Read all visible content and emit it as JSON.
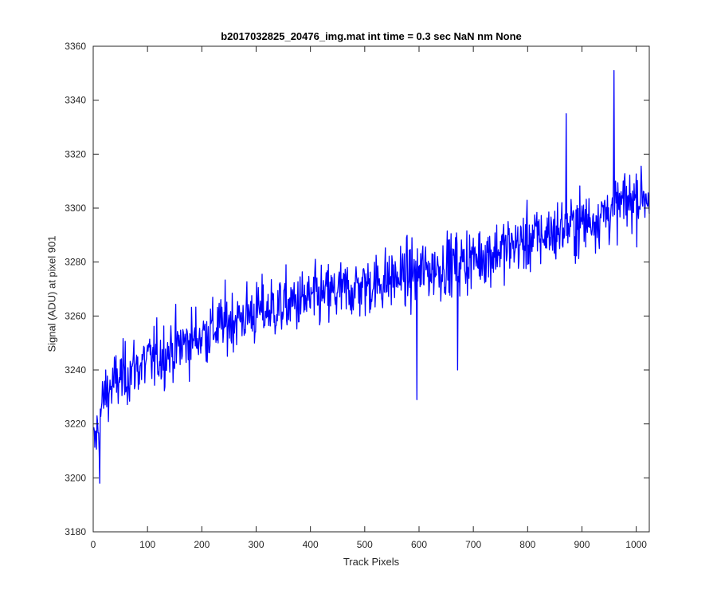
{
  "chart_data": {
    "type": "line",
    "title": "b2017032825_20476_img.mat int time = 0.3 sec  NaN nm None",
    "xlabel": "Track Pixels",
    "ylabel": "Signal (ADU) at pixel 901",
    "xlim": [
      0,
      1024
    ],
    "ylim": [
      3180,
      3360
    ],
    "xticks": [
      0,
      100,
      200,
      300,
      400,
      500,
      600,
      700,
      800,
      900,
      1000
    ],
    "yticks": [
      3180,
      3200,
      3220,
      3240,
      3260,
      3280,
      3300,
      3320,
      3340,
      3360
    ],
    "grid": false,
    "legend": "none",
    "series_color": "#0000ff",
    "axes_color": "#262626",
    "series": [
      {
        "x": [
          0,
          5,
          10,
          15,
          20,
          25,
          30,
          35,
          40,
          45,
          50,
          60,
          70,
          80,
          90,
          100,
          110,
          120,
          130,
          140,
          150,
          160,
          170,
          180,
          190,
          200,
          210,
          220,
          230,
          240,
          250,
          260,
          270,
          280,
          290,
          300,
          310,
          320,
          330,
          340,
          350,
          360,
          370,
          380,
          390,
          400,
          410,
          420,
          430,
          440,
          450,
          460,
          470,
          480,
          490,
          500,
          510,
          520,
          530,
          540,
          550,
          560,
          570,
          580,
          590,
          600,
          610,
          620,
          630,
          640,
          650,
          660,
          670,
          680,
          690,
          700,
          710,
          720,
          730,
          740,
          750,
          760,
          770,
          780,
          790,
          800,
          810,
          820,
          830,
          840,
          850,
          860,
          870,
          880,
          890,
          900,
          910,
          920,
          930,
          940,
          950,
          960,
          970,
          980,
          990,
          1000,
          1010,
          1020
        ],
        "values": [
          3210,
          3215,
          3220,
          3225,
          3230,
          3232,
          3233,
          3234,
          3235,
          3236,
          3237,
          3238,
          3240,
          3241,
          3242,
          3243,
          3244,
          3245,
          3246,
          3247,
          3248,
          3249,
          3250,
          3251,
          3252,
          3253,
          3254,
          3255,
          3256,
          3257,
          3258,
          3259,
          3259,
          3260,
          3261,
          3261,
          3262,
          3262,
          3263,
          3263,
          3264,
          3264,
          3265,
          3265,
          3266,
          3266,
          3267,
          3267,
          3268,
          3268,
          3269,
          3269,
          3270,
          3270,
          3271,
          3271,
          3272,
          3272,
          3273,
          3273,
          3274,
          3274,
          3275,
          3275,
          3276,
          3276,
          3277,
          3277,
          3278,
          3278,
          3279,
          3279,
          3280,
          3280,
          3281,
          3281,
          3282,
          3283,
          3283,
          3284,
          3285,
          3285,
          3286,
          3287,
          3287,
          3288,
          3289,
          3289,
          3290,
          3291,
          3291,
          3292,
          3293,
          3293,
          3294,
          3295,
          3295,
          3296,
          3297,
          3298,
          3299,
          3300,
          3301,
          3302,
          3303,
          3304,
          3305,
          3305
        ],
        "noise_amplitude": 15
      }
    ],
    "annotations": [
      {
        "x": 12,
        "y": 3198
      },
      {
        "x": 596,
        "y": 3229
      },
      {
        "x": 671,
        "y": 3240
      },
      {
        "x": 871,
        "y": 3335
      },
      {
        "x": 959,
        "y": 3351
      }
    ]
  }
}
